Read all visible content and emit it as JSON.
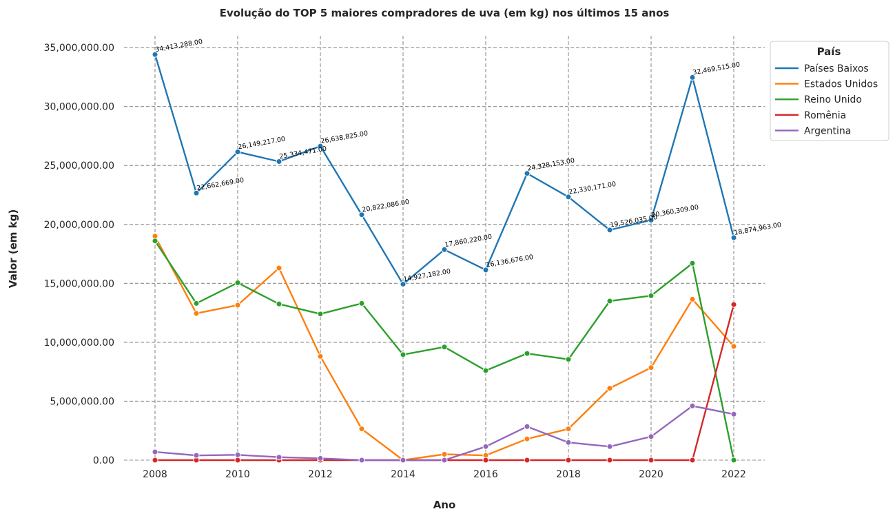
{
  "chart_data": {
    "type": "line",
    "title": "Evolução do TOP 5 maiores compradores de uva (em kg) nos últimos 15 anos",
    "xlabel": "Ano",
    "ylabel": "Valor (em kg)",
    "x": [
      2008,
      2009,
      2010,
      2011,
      2012,
      2013,
      2014,
      2015,
      2016,
      2017,
      2018,
      2019,
      2020,
      2021,
      2022
    ],
    "xlim": [
      2007.25,
      2022.75
    ],
    "ylim": [
      0,
      36000000
    ],
    "xticks": [
      2008,
      2010,
      2012,
      2014,
      2016,
      2018,
      2020,
      2022
    ],
    "yticks": [
      0,
      5000000,
      10000000,
      15000000,
      20000000,
      25000000,
      30000000,
      35000000
    ],
    "ytick_labels": [
      "0.00",
      "5,000,000.00",
      "10,000,000.00",
      "15,000,000.00",
      "20,000,000.00",
      "25,000,000.00",
      "30,000,000.00",
      "35,000,000.00"
    ],
    "grid": true,
    "legend": {
      "title": "País",
      "placement": "outside-top-right"
    },
    "series": [
      {
        "name": "Países Baixos",
        "color": "#1f77b4",
        "values": [
          34413288,
          22662669,
          26149217,
          25334471,
          26638825,
          20822086,
          14927182,
          17860220,
          16136676,
          24328153,
          22330171,
          19526035,
          20360309,
          32469515,
          18874963
        ],
        "labels": [
          "34,413,288.00",
          "22,662,669.00",
          "26,149,217.00",
          "25,334,471.00",
          "26,638,825.00",
          "20,822,086.00",
          "14,927,182.00",
          "17,860,220.00",
          "16,136,676.00",
          "24,328,153.00",
          "22,330,171.00",
          "19,526,035.00",
          "20,360,309.00",
          "32,469,515.00",
          "18,874,963.00"
        ]
      },
      {
        "name": "Estados Unidos",
        "color": "#ff7f0e",
        "values": [
          19000000,
          12450000,
          13150000,
          16300000,
          8800000,
          2650000,
          0,
          500000,
          400000,
          1800000,
          2650000,
          6100000,
          7850000,
          13650000,
          9650000
        ]
      },
      {
        "name": "Reino Unido",
        "color": "#2ca02c",
        "values": [
          18600000,
          13300000,
          15050000,
          13250000,
          12400000,
          13300000,
          8950000,
          9600000,
          7600000,
          9050000,
          8550000,
          13500000,
          13950000,
          16700000,
          0
        ]
      },
      {
        "name": "Romênia",
        "color": "#d62728",
        "values": [
          0,
          0,
          0,
          0,
          0,
          0,
          0,
          0,
          0,
          0,
          0,
          0,
          0,
          0,
          13200000
        ]
      },
      {
        "name": "Argentina",
        "color": "#9467bd",
        "values": [
          700000,
          400000,
          450000,
          250000,
          150000,
          0,
          0,
          0,
          1150000,
          2850000,
          1500000,
          1150000,
          2000000,
          4600000,
          3900000
        ]
      }
    ]
  }
}
